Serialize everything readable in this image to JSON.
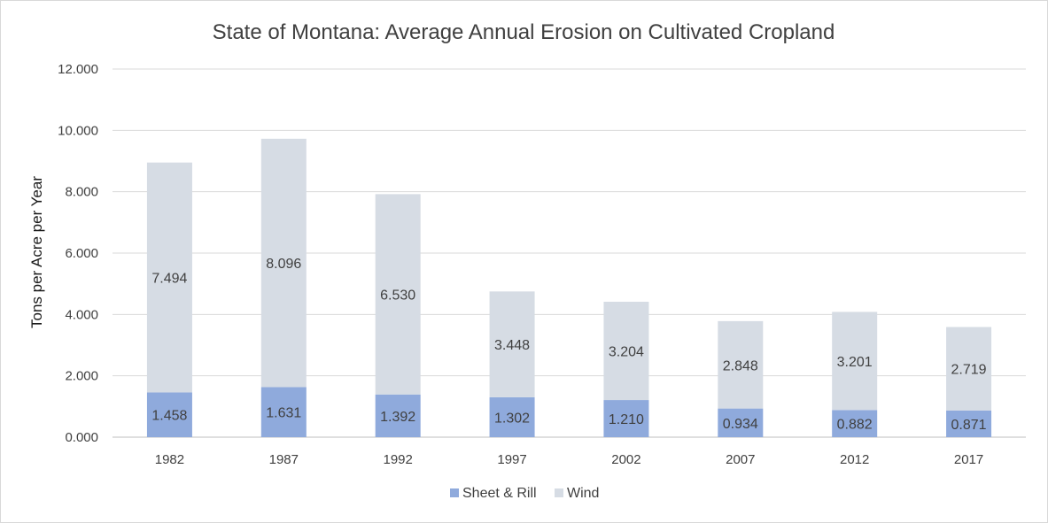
{
  "chart_data": {
    "type": "bar",
    "stacked": true,
    "title": "State of Montana: Average Annual Erosion on Cultivated Cropland",
    "xlabel": "",
    "ylabel": "Tons per Acre per Year",
    "categories": [
      "1982",
      "1987",
      "1992",
      "1997",
      "2002",
      "2007",
      "2012",
      "2017"
    ],
    "series": [
      {
        "name": "Sheet & Rill",
        "color": "#8faadc",
        "values": [
          1.458,
          1.631,
          1.392,
          1.302,
          1.21,
          0.934,
          0.882,
          0.871
        ],
        "labels": [
          "1.458",
          "1.631",
          "1.392",
          "1.302",
          "1.210",
          "0.934",
          "0.882",
          "0.871"
        ]
      },
      {
        "name": "Wind",
        "color": "#d6dce4",
        "values": [
          7.494,
          8.096,
          6.53,
          3.448,
          3.204,
          2.848,
          3.201,
          2.719
        ],
        "labels": [
          "7.494",
          "8.096",
          "6.530",
          "3.448",
          "3.204",
          "2.848",
          "3.201",
          "2.719"
        ]
      }
    ],
    "ylim": [
      0,
      12
    ],
    "yticks": [
      0,
      2,
      4,
      6,
      8,
      10,
      12
    ],
    "ytick_labels": [
      "0.000",
      "2.000",
      "4.000",
      "6.000",
      "8.000",
      "10.000",
      "12.000"
    ],
    "grid": true,
    "legend_position": "bottom-center"
  }
}
